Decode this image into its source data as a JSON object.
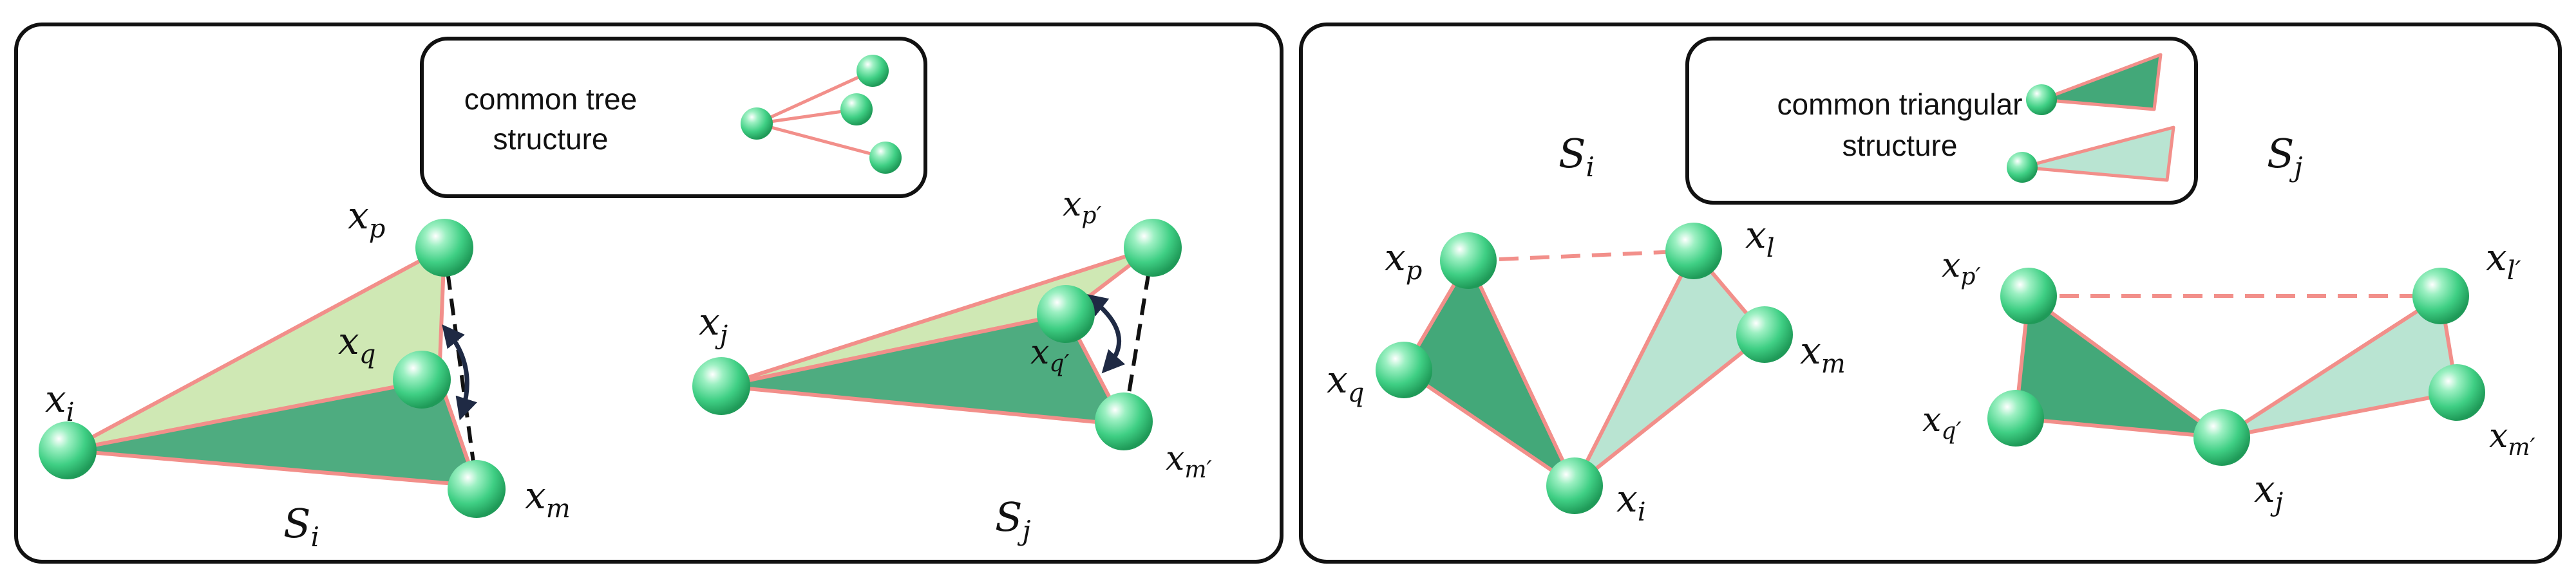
{
  "colors": {
    "edge": "#f28f8a",
    "dark_fill": "#2f9e6a",
    "light_fill": "#cfe8b4",
    "pale_fill": "#b9e4d2",
    "node": "#3fcf84",
    "arrow": "#1f2a44",
    "dash": "#111111",
    "frame": "#111111"
  },
  "left_panel": {
    "legend": {
      "line1": "common tree",
      "line2": "structure"
    },
    "graph_i": {
      "label": "S",
      "sub": "i",
      "nodes": {
        "xi": {
          "base": "x",
          "sub": "i"
        },
        "xp": {
          "base": "x",
          "sub": "p"
        },
        "xq": {
          "base": "x",
          "sub": "q"
        },
        "xm": {
          "base": "x",
          "sub": "m"
        }
      }
    },
    "graph_j": {
      "label": "S",
      "sub": "j",
      "nodes": {
        "xj": {
          "base": "x",
          "sub": "j"
        },
        "xp2": {
          "base": "x",
          "sub": "p′"
        },
        "xq2": {
          "base": "x",
          "sub": "q′"
        },
        "xm2": {
          "base": "x",
          "sub": "m′"
        }
      }
    }
  },
  "right_panel": {
    "legend": {
      "line1": "common triangular",
      "line2": "structure"
    },
    "graph_i": {
      "label": "S",
      "sub": "i",
      "nodes": {
        "xp": {
          "base": "x",
          "sub": "p"
        },
        "xl": {
          "base": "x",
          "sub": "l"
        },
        "xq": {
          "base": "x",
          "sub": "q"
        },
        "xm": {
          "base": "x",
          "sub": "m"
        },
        "xi": {
          "base": "x",
          "sub": "i"
        }
      }
    },
    "graph_j": {
      "label": "S",
      "sub": "j",
      "nodes": {
        "xp2": {
          "base": "x",
          "sub": "p′"
        },
        "xl2": {
          "base": "x",
          "sub": "l′"
        },
        "xq2": {
          "base": "x",
          "sub": "q′"
        },
        "xm2": {
          "base": "x",
          "sub": "m′"
        },
        "xj": {
          "base": "x",
          "sub": "j"
        }
      }
    }
  }
}
